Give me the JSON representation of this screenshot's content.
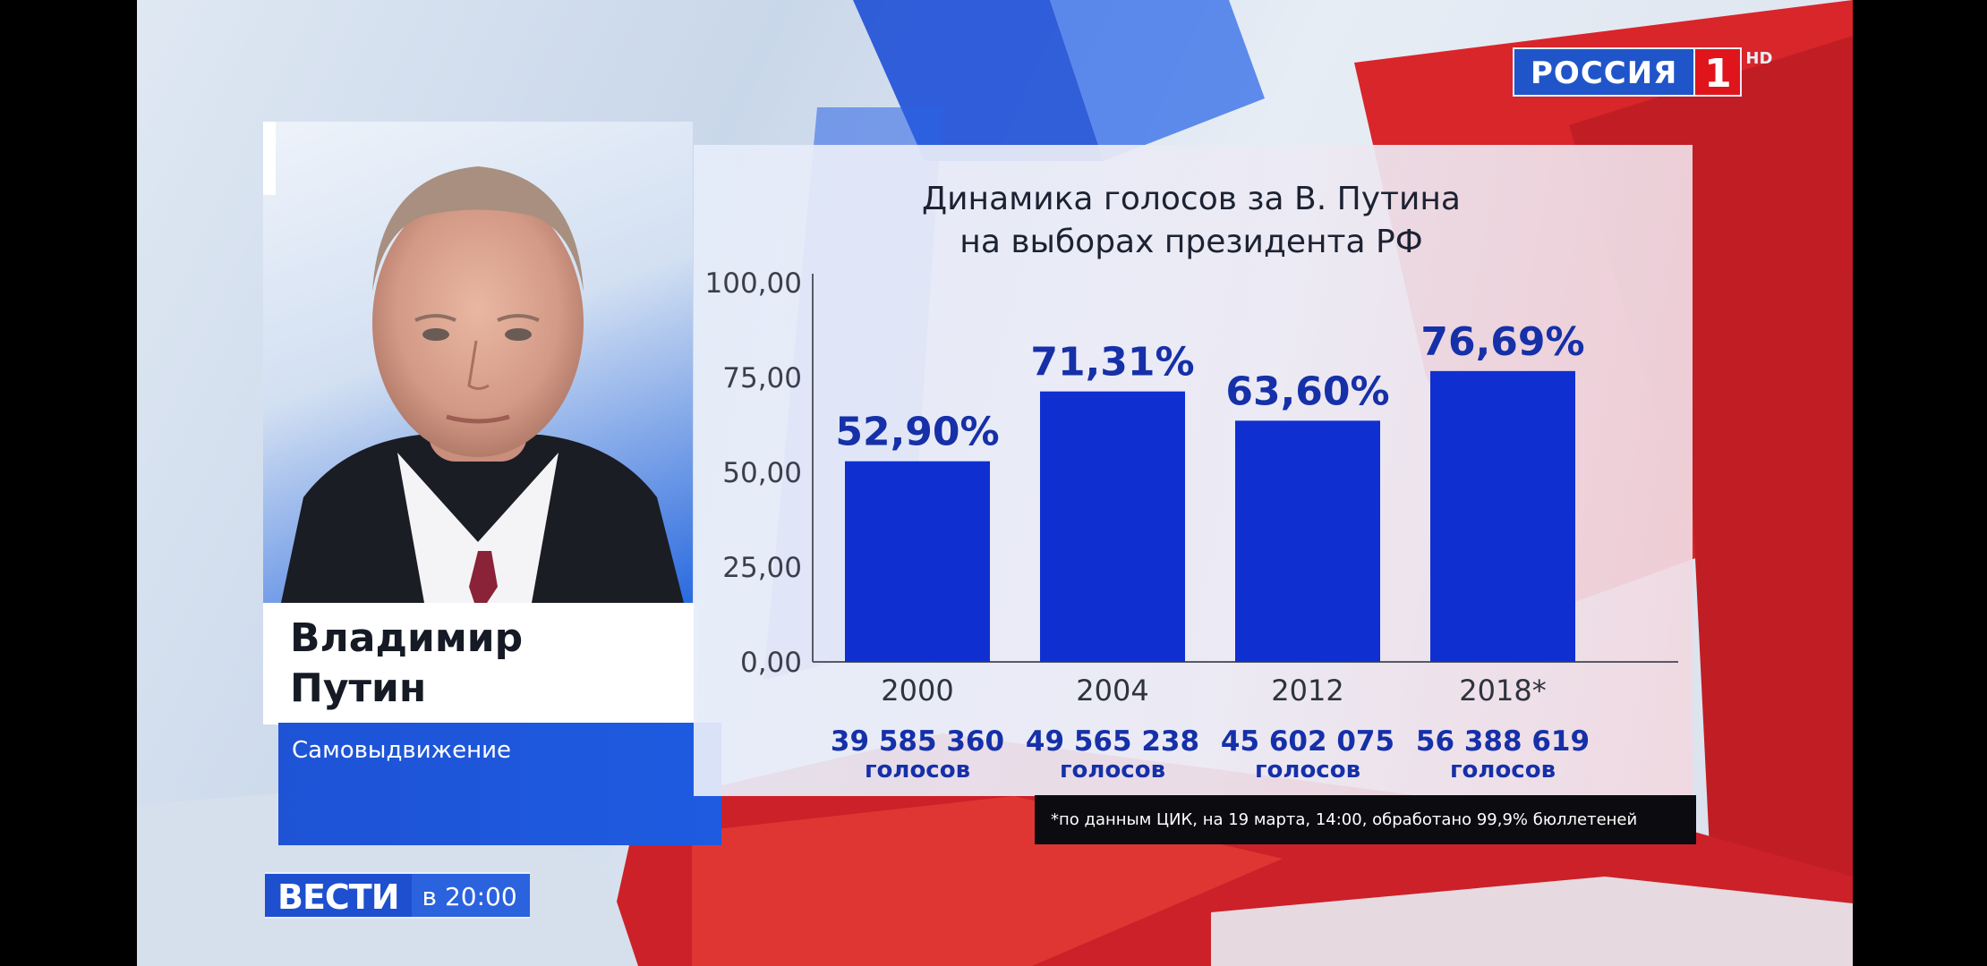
{
  "channel": {
    "name": "РОССИЯ",
    "number": "1",
    "quality": "HD"
  },
  "person": {
    "name_line1": "Владимир",
    "name_line2": "Путин",
    "party": "Самовыдвижение"
  },
  "program": {
    "name": "ВЕСТИ",
    "time": "в 20:00"
  },
  "footnote": "*по данным ЦИК, на 19 марта, 14:00, обработано 99,9% бюллетеней",
  "colors": {
    "bar": "#0f2fd1",
    "label": "#1530a8",
    "brand_blue": "#1f55c9",
    "brand_red": "#e0151c"
  },
  "chart_data": {
    "type": "bar",
    "title": "Динамика голосов за В. Путина на выборах президента РФ",
    "title_lines": [
      "Динамика голосов за В. Путина",
      "на выборах президента РФ"
    ],
    "categories": [
      "2000",
      "2004",
      "2012",
      "2018*"
    ],
    "values": [
      52.9,
      71.31,
      63.6,
      76.69
    ],
    "value_labels": [
      "52,90%",
      "71,31%",
      "63,60%",
      "76,69%"
    ],
    "votes": [
      "39 585 360",
      "49 565 238",
      "45 602 075",
      "56 388 619"
    ],
    "votes_unit": "голосов",
    "ylim": [
      0,
      100
    ],
    "yticks": [
      0,
      25,
      50,
      75,
      100
    ],
    "ytick_labels": [
      "0,00",
      "25,00",
      "50,00",
      "75,00",
      "100,00"
    ],
    "grid": false,
    "xlabel": "",
    "ylabel": ""
  }
}
